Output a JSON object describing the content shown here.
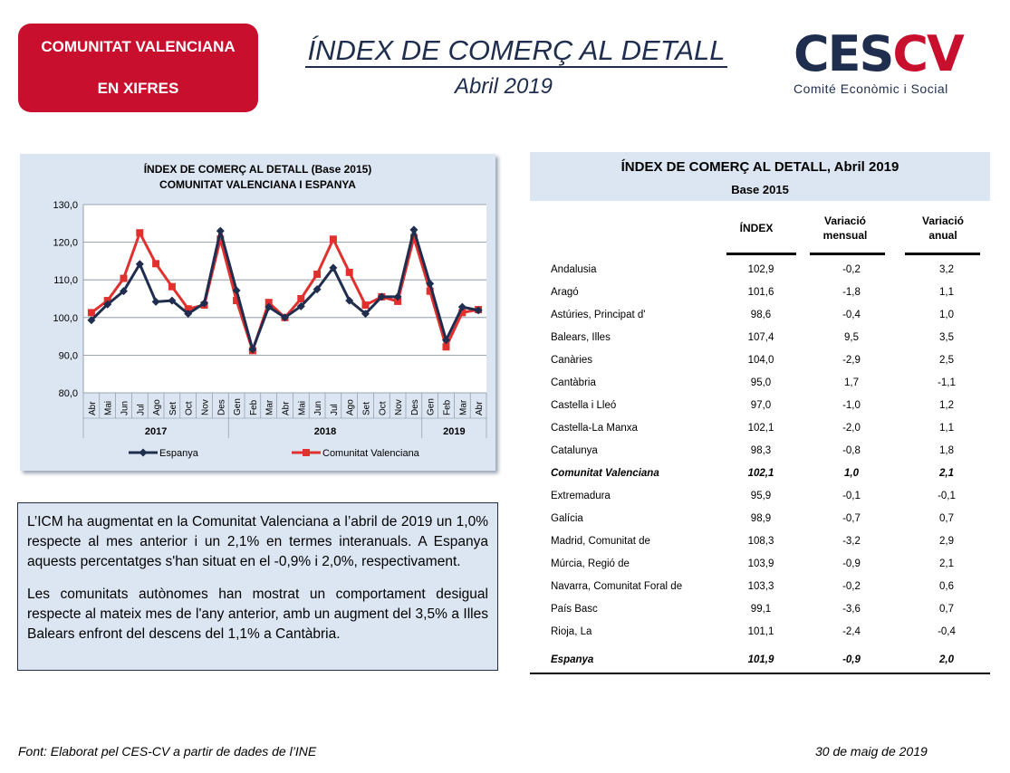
{
  "header": {
    "badge_line1": "COMUNITAT VALENCIANA",
    "badge_line2": "EN XIFRES",
    "title": "ÍNDEX DE COMERÇ AL DETALL",
    "subtitle": "Abril 2019",
    "logo_ces": "CES",
    "logo_cv": "CV",
    "logo_sub": "Comité Econòmic i Social"
  },
  "chart_data": {
    "type": "line",
    "title": "ÍNDEX DE COMERÇ  AL DETALL (Base 2015)",
    "subtitle": "COMUNITAT  VALENCIANA  I ESPANYA",
    "categories": [
      "Abr",
      "Mai",
      "Jun",
      "Jul",
      "Ago",
      "Set",
      "Oct",
      "Nov",
      "Des",
      "Gen",
      "Feb",
      "Mar",
      "Abr",
      "Mai",
      "Jun",
      "Jul",
      "Ago",
      "Set",
      "Oct",
      "Nov",
      "Des",
      "Gen",
      "Feb",
      "Mar",
      "Abr"
    ],
    "year_groups": [
      {
        "label": "2017",
        "count": 9
      },
      {
        "label": "2018",
        "count": 12
      },
      {
        "label": "2019",
        "count": 4
      }
    ],
    "ylim": [
      80,
      130
    ],
    "yticks": [
      "80,0",
      "90,0",
      "100,0",
      "110,0",
      "120,0",
      "130,0"
    ],
    "grid": true,
    "legend_position": "bottom",
    "series": [
      {
        "name": "Espanya",
        "color": "#1f2d4e",
        "values": [
          99.3,
          103.5,
          107.0,
          114.2,
          104.2,
          104.5,
          101.0,
          103.8,
          123.0,
          107.2,
          91.5,
          102.8,
          100.0,
          103.0,
          107.5,
          113.2,
          104.5,
          101.0,
          105.5,
          105.5,
          123.3,
          109.0,
          94.0,
          102.8,
          101.9
        ]
      },
      {
        "name": "Comunitat Valenciana",
        "color": "#e0312f",
        "values": [
          101.3,
          104.5,
          110.4,
          122.5,
          114.3,
          108.2,
          102.3,
          103.3,
          120.8,
          104.5,
          91.2,
          104.0,
          100.0,
          105.0,
          111.5,
          120.8,
          112.0,
          103.3,
          105.5,
          104.3,
          121.2,
          107.0,
          92.2,
          101.3,
          102.1
        ]
      }
    ]
  },
  "text": {
    "p1": "L’ICM ha augmentat en la Comunitat Valenciana a l’abril de 2019 un 1,0% respecte al mes anterior i un 2,1% en termes interanuals. A Espanya aquests percentatges s'han situat en el -0,9% i 2,0%, respectivament.",
    "p2": "Les comunitats autònomes han mostrat un comportament desigual respecte al mateix mes de l'any anterior, amb un augment del 3,5% a Illes Balears enfront del descens del 1,1% a Cantàbria."
  },
  "table": {
    "title": "ÍNDEX DE COMERÇ AL DETALL, Abril 2019",
    "base": "Base 2015",
    "col1": "ÍNDEX",
    "col2a": "Variació",
    "col2b": "mensual",
    "col3a": "Variació",
    "col3b": "anual",
    "rows": [
      {
        "name": "Andalusia",
        "index": "102,9",
        "mensual": "-0,2",
        "anual": "3,2"
      },
      {
        "name": "Aragó",
        "index": "101,6",
        "mensual": "-1,8",
        "anual": "1,1"
      },
      {
        "name": "Astúries, Principat d'",
        "index": "98,6",
        "mensual": "-0,4",
        "anual": "1,0"
      },
      {
        "name": "Balears, Illes",
        "index": "107,4",
        "mensual": "9,5",
        "anual": "3,5"
      },
      {
        "name": "Canàries",
        "index": "104,0",
        "mensual": "-2,9",
        "anual": "2,5"
      },
      {
        "name": "Cantàbria",
        "index": "95,0",
        "mensual": "1,7",
        "anual": "-1,1"
      },
      {
        "name": "Castella i Lleó",
        "index": "97,0",
        "mensual": "-1,0",
        "anual": "1,2"
      },
      {
        "name": "Castella-La Manxa",
        "index": "102,1",
        "mensual": "-2,0",
        "anual": "1,1"
      },
      {
        "name": "Catalunya",
        "index": "98,3",
        "mensual": "-0,8",
        "anual": "1,8"
      },
      {
        "name": "Comunitat Valenciana",
        "index": "102,1",
        "mensual": "1,0",
        "anual": "2,1",
        "bold": true
      },
      {
        "name": "Extremadura",
        "index": "95,9",
        "mensual": "-0,1",
        "anual": "-0,1"
      },
      {
        "name": "Galícia",
        "index": "98,9",
        "mensual": "-0,7",
        "anual": "0,7"
      },
      {
        "name": "Madrid, Comunitat de",
        "index": "108,3",
        "mensual": "-3,2",
        "anual": "2,9"
      },
      {
        "name": "Múrcia, Regió de",
        "index": "103,9",
        "mensual": "-0,9",
        "anual": "2,1"
      },
      {
        "name": "Navarra, Comunitat Foral de",
        "index": "103,3",
        "mensual": "-0,2",
        "anual": "0,6"
      },
      {
        "name": "País Basc",
        "index": "99,1",
        "mensual": "-3,6",
        "anual": "0,7"
      },
      {
        "name": "Rioja, La",
        "index": "101,1",
        "mensual": "-2,4",
        "anual": "-0,4"
      },
      {
        "name": "Espanya",
        "index": "101,9",
        "mensual": "-0,9",
        "anual": "2,0",
        "bold": true
      }
    ]
  },
  "footer": {
    "source": "Font: Elaborat pel CES-CV a partir de dades de l’INE",
    "date": "30 de maig de 2019"
  }
}
